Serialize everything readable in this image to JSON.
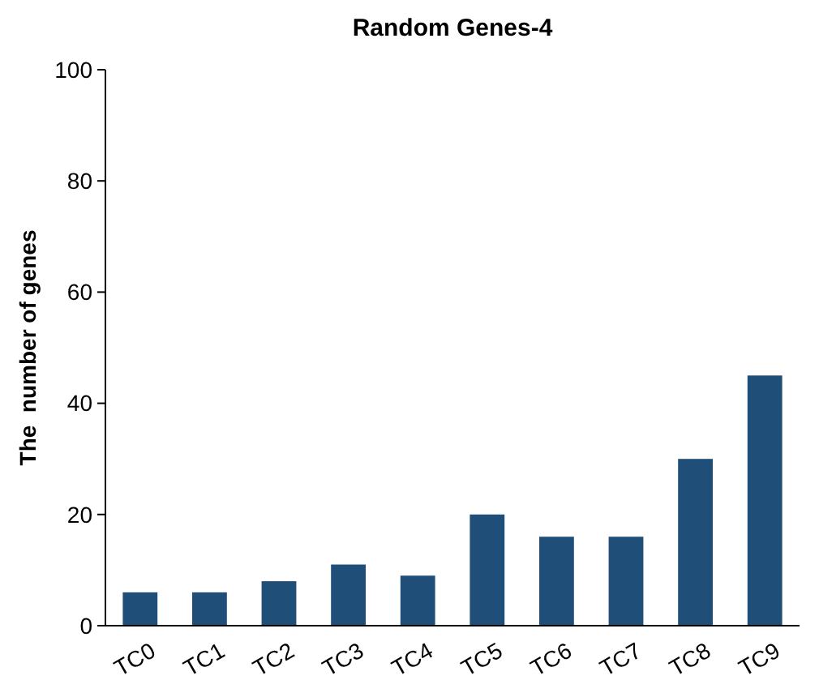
{
  "chart_data": {
    "type": "bar",
    "title": "Random Genes-4",
    "ylabel": "The  number of genes",
    "categories": [
      "TC0",
      "TC1",
      "TC2",
      "TC3",
      "TC4",
      "TC5",
      "TC6",
      "TC7",
      "TC8",
      "TC9"
    ],
    "values": [
      6,
      6,
      8,
      11,
      9,
      20,
      16,
      16,
      30,
      45
    ],
    "color": "#1f4e79",
    "ylim": [
      0,
      100
    ],
    "yticks": [
      0,
      20,
      40,
      60,
      80,
      100
    ],
    "grid": false
  }
}
